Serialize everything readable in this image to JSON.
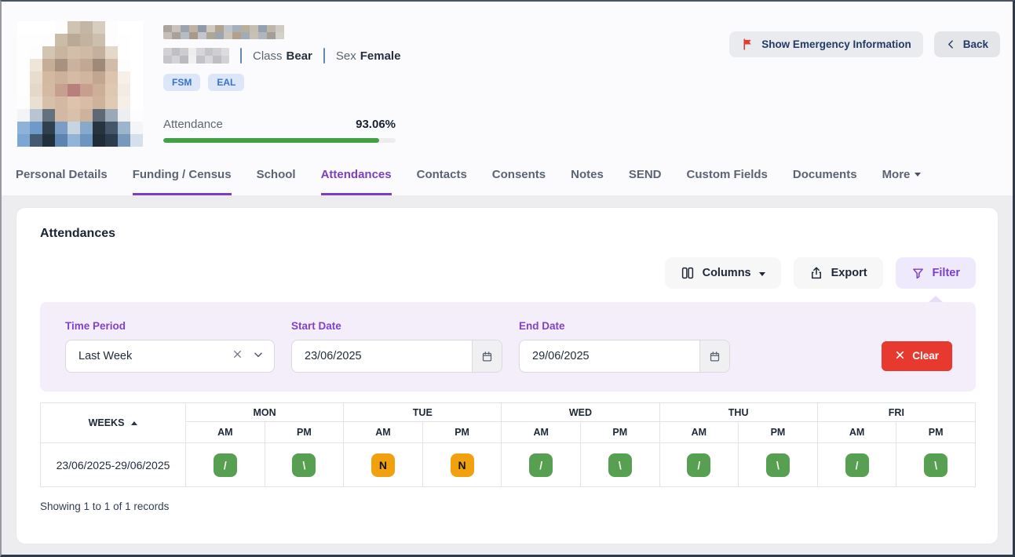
{
  "header": {
    "student": {
      "class_label": "Class",
      "class_value": "Bear",
      "sex_label": "Sex",
      "sex_value": "Female",
      "badges": [
        "FSM",
        "EAL"
      ],
      "attendance_label": "Attendance",
      "attendance_value": "93.06%",
      "attendance_percent": 93.06
    },
    "buttons": {
      "emergency": "Show Emergency Information",
      "back": "Back"
    },
    "photo_pixels": [
      [
        "#ffffff",
        "#ffffff",
        "#ffffff",
        "#fdfdfd",
        "#cfc3b2",
        "#c3b6a4",
        "#d8cec0",
        "#fdfdfd",
        "#ffffff",
        "#ffffff"
      ],
      [
        "#fefefe",
        "#fefefe",
        "#fdfdfd",
        "#cbbcaa",
        "#b9a995",
        "#c3b2a0",
        "#cdbfae",
        "#fdfdfd",
        "#fefefe",
        "#ffffff"
      ],
      [
        "#fefefe",
        "#fdfdfd",
        "#d4c5b2",
        "#c9b49f",
        "#d3bfa9",
        "#cfbaa5",
        "#c4b09c",
        "#e4d8c8",
        "#fefefe",
        "#ffffff"
      ],
      [
        "#fefefe",
        "#efe6da",
        "#c5ad98",
        "#a8917e",
        "#cbb29e",
        "#c2a892",
        "#9f8a79",
        "#d0bca8",
        "#fdfdfd",
        "#ffffff"
      ],
      [
        "#fefefe",
        "#e8dccd",
        "#d3b8a2",
        "#ceb19a",
        "#d6bba4",
        "#d2b59e",
        "#c3a68f",
        "#dcc4ae",
        "#f6f0e8",
        "#ffffff"
      ],
      [
        "#fefefe",
        "#e6d8c8",
        "#d5b9a2",
        "#c79f90",
        "#b97f7c",
        "#c89e8e",
        "#cdae97",
        "#dfc8b2",
        "#f3ece2",
        "#ffffff"
      ],
      [
        "#fdfdfd",
        "#e9dfd2",
        "#d8bfaa",
        "#d4b8a1",
        "#ddc3ac",
        "#d8bca6",
        "#cfb29b",
        "#e0cab4",
        "#f5efe7",
        "#ffffff"
      ],
      [
        "#f3f4f6",
        "#b9c4d2",
        "#64727f",
        "#d3b9a4",
        "#d9c0ab",
        "#cdb29c",
        "#5d6a76",
        "#9aa8b8",
        "#eceef1",
        "#fdfdfd"
      ],
      [
        "#8fb2d8",
        "#6f99c8",
        "#31404e",
        "#7b9cc4",
        "#c8d4e2",
        "#88a8cc",
        "#27333f",
        "#44576a",
        "#9db4cd",
        "#f3f5f8"
      ],
      [
        "#7ea6d4",
        "#435a70",
        "#22303c",
        "#5d84b0",
        "#92b4d8",
        "#6e94c0",
        "#202c38",
        "#2c3c4c",
        "#7898bc",
        "#d6e0ec"
      ]
    ],
    "name_redacted_pixels": [
      [
        "#aba49c",
        "#c8c2ba",
        "#9aa3ae",
        "#c0b2a0",
        "#8e9aa8",
        "#cfc9c2",
        "#b2a28e",
        "#bfc3c9",
        "#a5b0bc",
        "#b8ae9a",
        "#c6beb2",
        "#95a0ae",
        "#beb6a8",
        "#d0cac2"
      ],
      [
        "#c4beb6",
        "#a8a29a",
        "#b6bcc4",
        "#a89a88",
        "#c2c6cc",
        "#b0a694",
        "#9ca6b2",
        "#cac4bc",
        "#b49e8c",
        "#a2acb8",
        "#c8c0b4",
        "#b0b6be",
        "#a49e96",
        "#d4d0ca"
      ]
    ],
    "dob_redacted_pixels": [
      [
        "#d2d2d5",
        "#bfbfc4",
        "#cdcdd0",
        "#eceded",
        "#d6d6d8",
        "#c4c4c9",
        "#cfcfd2",
        "#dcdcde"
      ],
      [
        "#c6c6ca",
        "#d4d4d6",
        "#babac0",
        "#f0f0f1",
        "#c2c2c7",
        "#d8d8da",
        "#bebec3",
        "#d2d2d5"
      ]
    ]
  },
  "tabs": [
    {
      "label": "Personal Details",
      "active": false,
      "underlined": false
    },
    {
      "label": "Funding / Census",
      "active": false,
      "underlined": true
    },
    {
      "label": "School",
      "active": false,
      "underlined": false
    },
    {
      "label": "Attendances",
      "active": true,
      "underlined": true
    },
    {
      "label": "Contacts",
      "active": false,
      "underlined": false
    },
    {
      "label": "Consents",
      "active": false,
      "underlined": false
    },
    {
      "label": "Notes",
      "active": false,
      "underlined": false
    },
    {
      "label": "SEND",
      "active": false,
      "underlined": false
    },
    {
      "label": "Custom Fields",
      "active": false,
      "underlined": false
    },
    {
      "label": "Documents",
      "active": false,
      "underlined": false
    },
    {
      "label": "More",
      "active": false,
      "underlined": false,
      "dropdown": true
    }
  ],
  "panel": {
    "title": "Attendances",
    "toolbar": {
      "columns": "Columns",
      "export": "Export",
      "filter": "Filter"
    },
    "filters": {
      "time_period": {
        "label": "Time Period",
        "value": "Last Week"
      },
      "start_date": {
        "label": "Start Date",
        "value": "23/06/2025"
      },
      "end_date": {
        "label": "End Date",
        "value": "29/06/2025"
      },
      "clear": "Clear"
    },
    "footer": "Showing 1 to 1 of 1 records"
  },
  "table": {
    "weeks_header": "WEEKS",
    "days": [
      "MON",
      "TUE",
      "WED",
      "THU",
      "FRI"
    ],
    "sessions": [
      "AM",
      "PM"
    ],
    "rows": [
      {
        "week": "23/06/2025-29/06/2025",
        "marks": [
          {
            "code": "/",
            "type": "present"
          },
          {
            "code": "\\",
            "type": "present"
          },
          {
            "code": "N",
            "type": "no-reason"
          },
          {
            "code": "N",
            "type": "no-reason"
          },
          {
            "code": "/",
            "type": "present"
          },
          {
            "code": "\\",
            "type": "present"
          },
          {
            "code": "/",
            "type": "present"
          },
          {
            "code": "\\",
            "type": "present"
          },
          {
            "code": "/",
            "type": "present"
          },
          {
            "code": "\\",
            "type": "present"
          }
        ]
      }
    ]
  },
  "icons": {
    "emergency_flag": "flag-icon",
    "back": "chevron-left-icon",
    "columns": "columns-icon",
    "export": "upload-icon",
    "filter": "funnel-icon",
    "select_clear": "x-icon",
    "select_open": "chevron-down-icon",
    "date_picker": "calendar-icon",
    "weeks_sort": "sort-ascending-icon",
    "clear": "x-icon",
    "more": "caret-down-icon"
  },
  "colors": {
    "accent_purple": "#7d3fc2",
    "present_green": "#57a052",
    "no_reason_orange": "#f1a10d",
    "clear_red": "#e8392f",
    "badge_blue_bg": "#dbe7f8",
    "badge_blue_text": "#3b72c8",
    "progress_green": "#43a047",
    "filter_panel_bg": "#f4eefb"
  }
}
